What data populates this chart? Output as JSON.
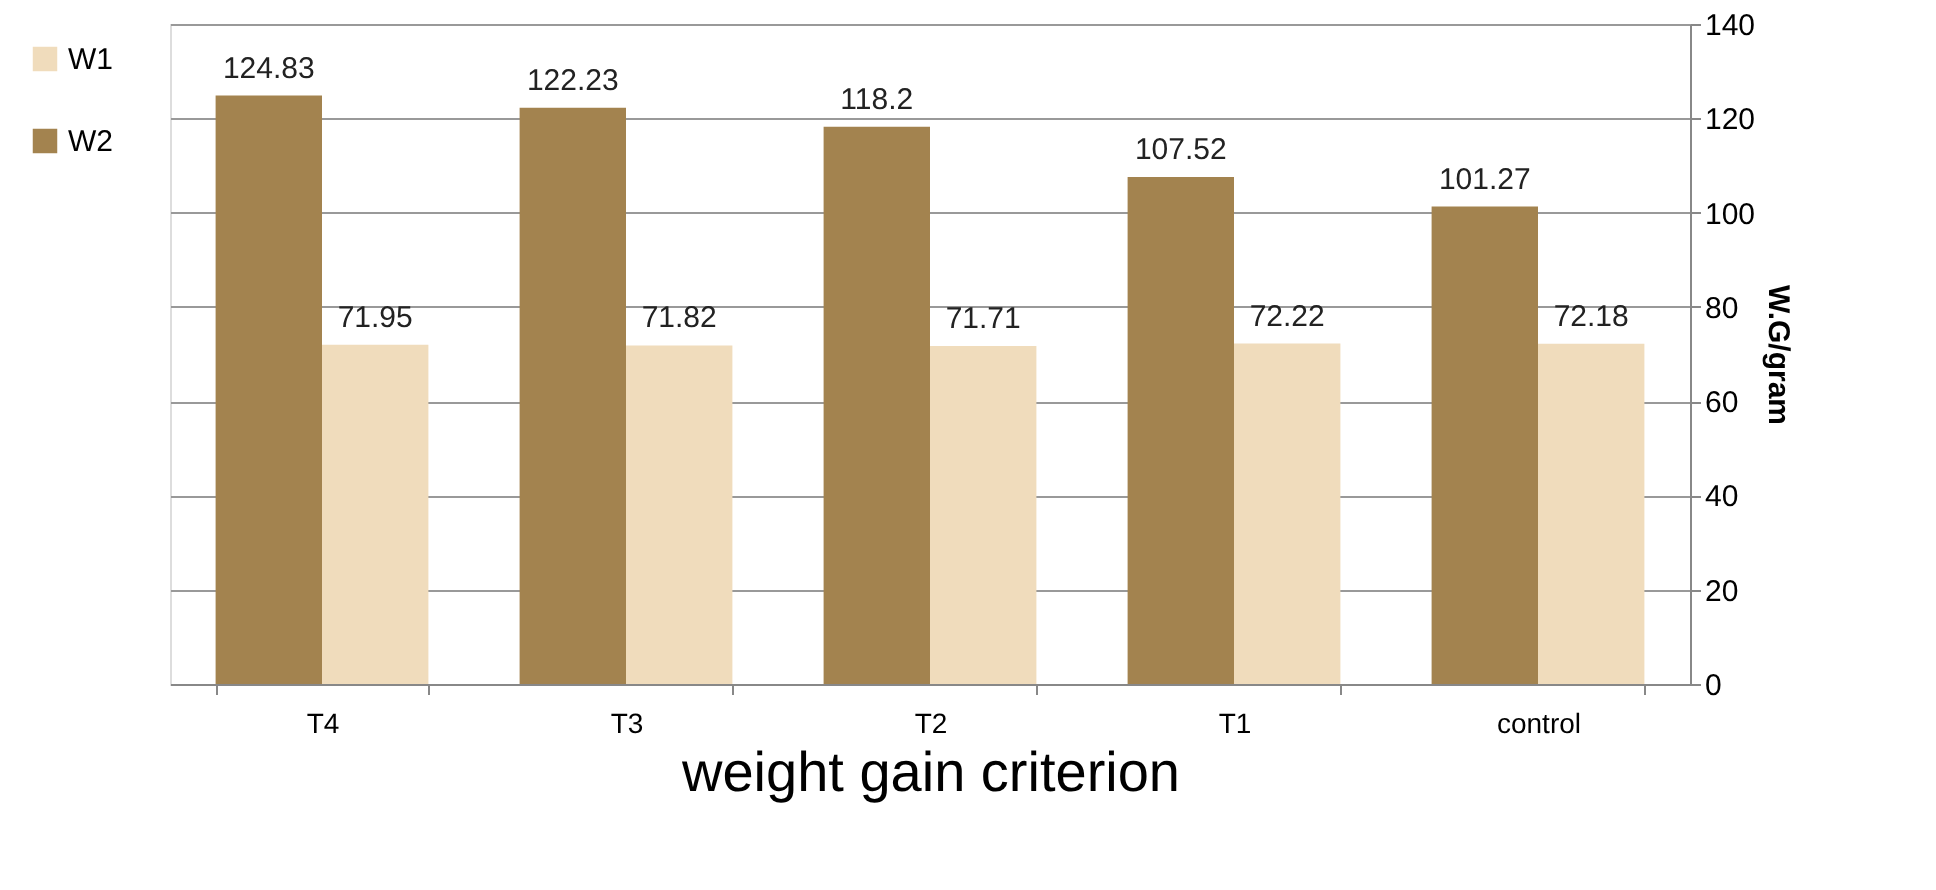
{
  "chart_data": {
    "type": "bar",
    "xlabel": "weight gain criterion",
    "ylabel": "W.G/gram",
    "categories": [
      "T4",
      "T3",
      "T2",
      "T1",
      "control"
    ],
    "series": [
      {
        "name": "W1",
        "color": "#f0dcbc",
        "values": [
          71.95,
          71.82,
          71.71,
          72.22,
          72.18
        ]
      },
      {
        "name": "W2",
        "color": "#a3834f",
        "values": [
          124.83,
          122.23,
          118.2,
          107.52,
          101.27
        ]
      }
    ],
    "ylim": [
      0,
      140
    ],
    "yticks": [
      0,
      20,
      40,
      60,
      80,
      100,
      120,
      140
    ],
    "grid": "y",
    "legend": "left",
    "data_labels": true
  }
}
